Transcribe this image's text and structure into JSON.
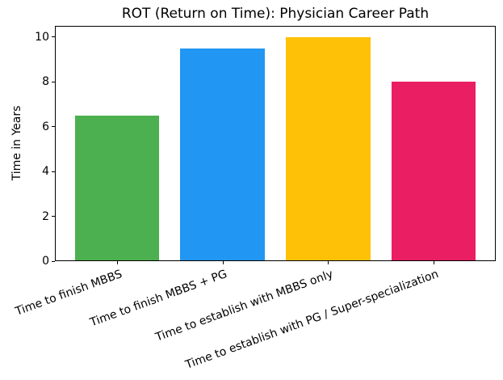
{
  "chart_data": {
    "type": "bar",
    "title": "ROT (Return on Time): Physician Career Path",
    "xlabel": "",
    "ylabel": "Time in Years",
    "categories": [
      "Time to finish MBBS",
      "Time to finish MBBS + PG",
      "Time to establish with MBBS only",
      "Time to establish with PG / Super-specialization"
    ],
    "values": [
      6.5,
      9.5,
      10,
      8
    ],
    "bar_colors": [
      "#4caf50",
      "#2196f3",
      "#ffc107",
      "#e91e63"
    ],
    "yticks": [
      0,
      2,
      4,
      6,
      8,
      10
    ],
    "ylim": [
      0,
      10.5
    ],
    "xlim": [
      -0.59,
      3.59
    ],
    "bar_width_units": 0.8,
    "xtick_label_rotation_deg": 20,
    "grid": false,
    "legend": "none",
    "spine_color": "#000000",
    "text_color": "#000000",
    "background_color": "#ffffff"
  }
}
